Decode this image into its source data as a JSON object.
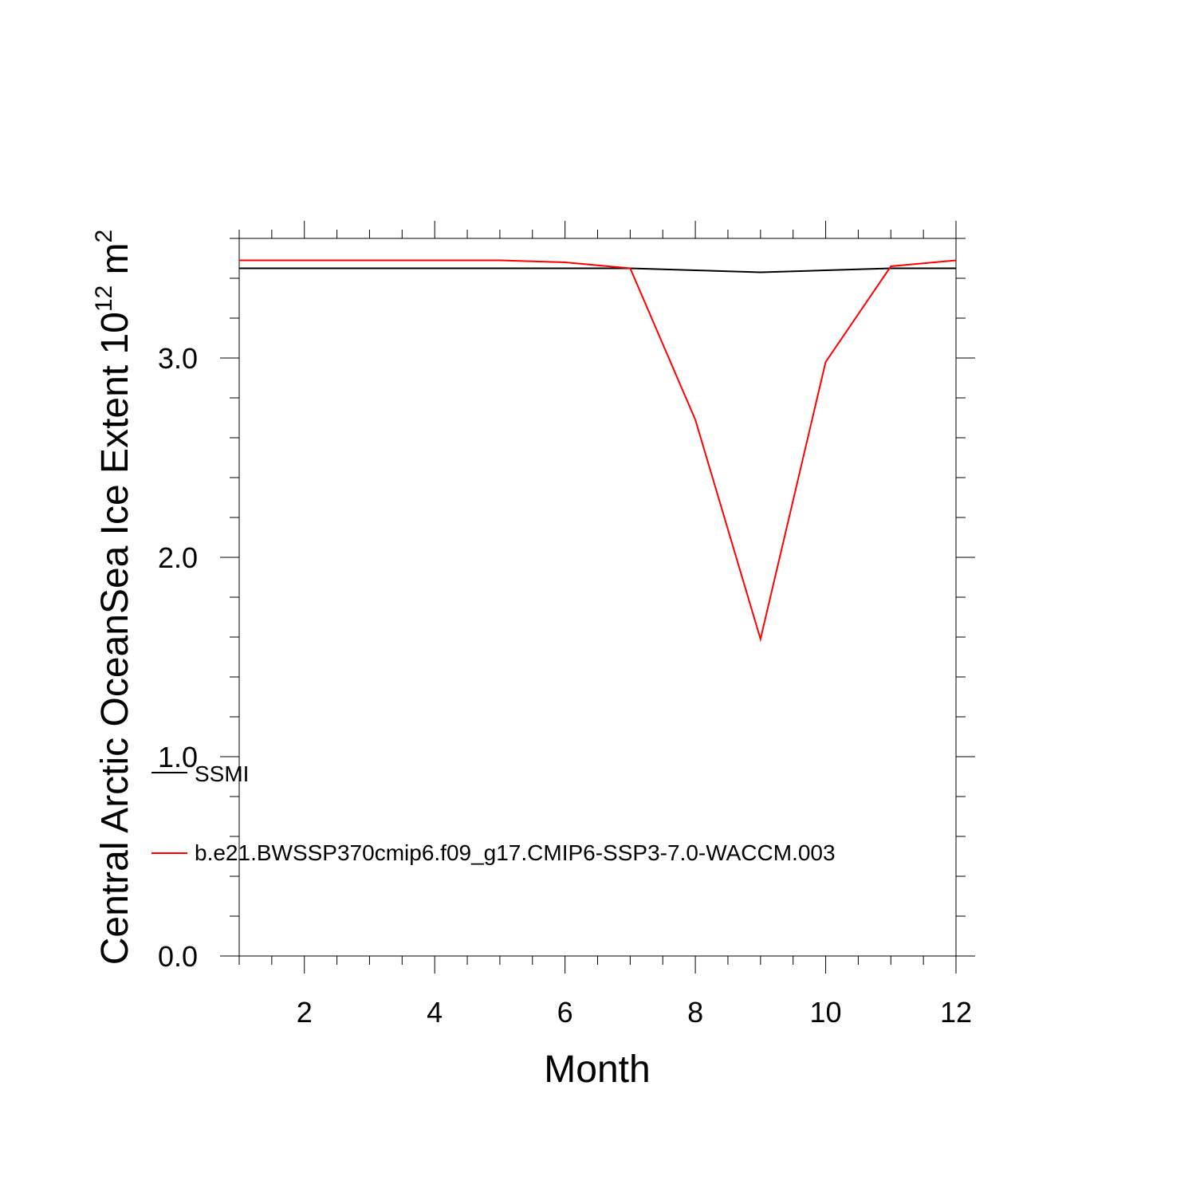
{
  "chart_data": {
    "type": "line",
    "title": "",
    "xlabel": "Month",
    "ylabel": {
      "prefix": "Central Arctic OceanSea Ice Extent 10",
      "exp1": "12",
      "mid": " m",
      "exp2": "2"
    },
    "xlim": [
      1,
      12
    ],
    "ylim": [
      0,
      3.6
    ],
    "xticks": [
      2,
      4,
      6,
      8,
      10,
      12
    ],
    "xtick_labels": [
      "2",
      "4",
      "6",
      "8",
      "10",
      "12"
    ],
    "yticks": [
      0,
      1,
      2,
      3
    ],
    "ytick_labels": [
      "0.0",
      "1.0",
      "2.0",
      "3.0"
    ],
    "grid": false,
    "legend_position": "left-inside",
    "series": [
      {
        "name": "SSMI",
        "color": "#000000",
        "x": [
          1,
          2,
          3,
          4,
          5,
          6,
          7,
          8,
          9,
          10,
          11,
          12
        ],
        "values": [
          3.45,
          3.45,
          3.45,
          3.45,
          3.45,
          3.45,
          3.45,
          3.44,
          3.43,
          3.44,
          3.45,
          3.45
        ]
      },
      {
        "name": "b.e21.BWSSP370cmip6.f09_g17.CMIP6-SSP3-7.0-WACCM.003",
        "color": "#ff0000",
        "x": [
          1,
          2,
          3,
          4,
          5,
          6,
          7,
          8,
          9,
          10,
          11,
          12
        ],
        "values": [
          3.49,
          3.49,
          3.49,
          3.49,
          3.49,
          3.48,
          3.45,
          2.69,
          1.59,
          2.98,
          3.46,
          3.49
        ]
      }
    ]
  }
}
